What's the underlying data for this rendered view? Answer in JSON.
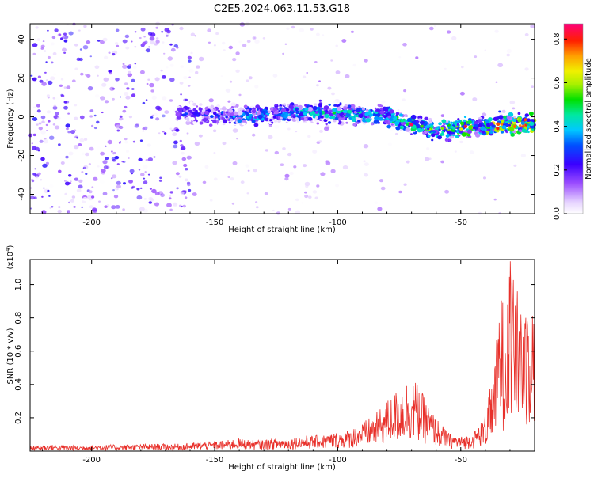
{
  "page": {
    "title": "C2E5.2024.063.11.53.G18"
  },
  "colors": {
    "background": "#ffffff",
    "axis": "#000000",
    "snr_line": "#e8302a",
    "spectrum_points": "#6a0dea",
    "track_core": "#00e5e0"
  },
  "chart_data": [
    {
      "type": "heatmap",
      "xlabel": "Height of straight line (km)",
      "ylabel": "Frequency (Hz)",
      "xlim": [
        -225,
        -20
      ],
      "ylim": [
        -50,
        48
      ],
      "x_ticks": [
        -200,
        -150,
        -100,
        -50
      ],
      "y_ticks": [
        -40,
        -20,
        0,
        20,
        40
      ],
      "grid": false,
      "description_of_content": "Scattered spectral amplitude points; dense noise at heights -225 to -155 km; a coherent narrow track near 0 Hz from about -160 km to -20 km, drifting to about -7 Hz near -60 km and about -3 Hz near -20 km, with highest amplitudes (green to red) near -70 km and -50 to -20 km.",
      "track": {
        "x": [
          -225,
          -200,
          -180,
          -160,
          -150,
          -140,
          -130,
          -120,
          -110,
          -100,
          -90,
          -80,
          -70,
          -60,
          -50,
          -40,
          -30,
          -20
        ],
        "y": [
          0,
          1,
          0,
          2,
          1,
          0,
          1,
          2,
          2,
          2,
          1,
          0,
          -4,
          -7,
          -6,
          -5,
          -4,
          -3
        ],
        "amplitude": [
          0.2,
          0.22,
          0.25,
          0.3,
          0.35,
          0.4,
          0.42,
          0.45,
          0.45,
          0.48,
          0.5,
          0.5,
          0.6,
          0.55,
          0.6,
          0.7,
          0.75,
          0.8
        ]
      },
      "colorbar": {
        "label": "Normalized spectral amplitude",
        "range": [
          0,
          0.87
        ],
        "ticks": [
          0.0,
          0.2,
          0.4,
          0.6,
          0.8
        ],
        "colormap": "rainbow (white-violet to red/magenta)"
      }
    },
    {
      "type": "line",
      "xlabel": "Height of straight line (km)",
      "ylabel": "SNR (10 * v/v)",
      "y_scale_note": "(x10^4)",
      "xlim": [
        -225,
        -20
      ],
      "ylim": [
        0,
        1.15
      ],
      "x_ticks": [
        -200,
        -150,
        -100,
        -50
      ],
      "y_ticks": [
        0.2,
        0.4,
        0.6,
        0.8,
        1.0
      ],
      "grid": false,
      "series": [
        {
          "x": [
            -225,
            -215,
            -205,
            -195,
            -185,
            -175,
            -165,
            -155,
            -145,
            -140,
            -135,
            -125,
            -115,
            -105,
            -95,
            -85,
            -80,
            -75,
            -70,
            -68,
            -65,
            -62,
            -58,
            -55,
            -50,
            -45,
            -40,
            -36,
            -34,
            -32,
            -30,
            -28,
            -26,
            -24,
            -22,
            -20
          ],
          "y": [
            0.03,
            0.035,
            0.03,
            0.035,
            0.035,
            0.04,
            0.04,
            0.05,
            0.06,
            0.07,
            0.06,
            0.07,
            0.08,
            0.09,
            0.12,
            0.2,
            0.28,
            0.35,
            0.42,
            0.38,
            0.3,
            0.22,
            0.15,
            0.1,
            0.08,
            0.1,
            0.2,
            0.5,
            0.93,
            0.75,
            1.15,
            0.85,
            0.92,
            0.8,
            0.95,
            0.85
          ]
        }
      ]
    }
  ]
}
